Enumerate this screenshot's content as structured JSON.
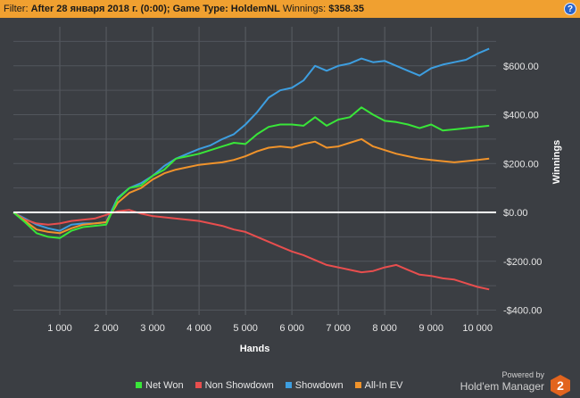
{
  "filter_bar": {
    "label": "Filter:",
    "value": "After 28 января 2018 г. (0:00); Game Type: HoldemNL",
    "winnings_label": "Winnings:",
    "winnings_value": "$358.35",
    "help_symbol": "?"
  },
  "branding": {
    "powered_by": "Powered by",
    "product": "Hold'em Manager",
    "badge": "2"
  },
  "chart_data": {
    "type": "line",
    "xlabel": "Hands",
    "ylabel": "Winnings",
    "xlim": [
      0,
      10400
    ],
    "ylim": [
      -420,
      760
    ],
    "x_ticks": [
      1000,
      2000,
      3000,
      4000,
      5000,
      6000,
      7000,
      8000,
      9000,
      10000
    ],
    "x_tick_labels": [
      "1 000",
      "2 000",
      "3 000",
      "4 000",
      "5 000",
      "6 000",
      "7 000",
      "8 000",
      "9 000",
      "10 000"
    ],
    "y_ticks": [
      -400,
      -200,
      0,
      200,
      400,
      600
    ],
    "y_tick_labels": [
      "-$400.00",
      "-$200.00",
      "$0.00",
      "$200.00",
      "$400.00",
      "$600.00"
    ],
    "grid": true,
    "zero_line": true,
    "legend_position": "bottom",
    "x": [
      0,
      250,
      500,
      750,
      1000,
      1250,
      1500,
      1750,
      2000,
      2250,
      2500,
      2750,
      3000,
      3250,
      3500,
      3750,
      4000,
      4250,
      4500,
      4750,
      5000,
      5250,
      5500,
      5750,
      6000,
      6250,
      6500,
      6750,
      7000,
      7250,
      7500,
      7750,
      8000,
      8250,
      8500,
      8750,
      9000,
      9250,
      9500,
      9750,
      10000,
      10250
    ],
    "series": [
      {
        "name": "Net Won",
        "color": "#39e639",
        "values": [
          0,
          -40,
          -85,
          -100,
          -105,
          -75,
          -60,
          -55,
          -50,
          55,
          100,
          110,
          150,
          175,
          220,
          230,
          240,
          255,
          270,
          285,
          280,
          320,
          350,
          360,
          360,
          355,
          390,
          355,
          380,
          390,
          430,
          400,
          375,
          370,
          360,
          345,
          360,
          335,
          340,
          345,
          350,
          355
        ]
      },
      {
        "name": "Non Showdown",
        "color": "#e84e4e",
        "values": [
          0,
          -30,
          -45,
          -50,
          -45,
          -35,
          -30,
          -25,
          -10,
          5,
          10,
          -5,
          -15,
          -20,
          -25,
          -30,
          -35,
          -45,
          -55,
          -70,
          -80,
          -100,
          -120,
          -140,
          -160,
          -175,
          -195,
          -215,
          -225,
          -235,
          -245,
          -240,
          -225,
          -215,
          -235,
          -255,
          -260,
          -270,
          -275,
          -290,
          -305,
          -315
        ]
      },
      {
        "name": "Showdown",
        "color": "#3d9ee0",
        "values": [
          0,
          -25,
          -50,
          -65,
          -75,
          -50,
          -45,
          -45,
          -40,
          60,
          100,
          120,
          150,
          190,
          220,
          240,
          260,
          275,
          300,
          320,
          360,
          410,
          470,
          500,
          510,
          540,
          600,
          580,
          600,
          610,
          630,
          615,
          620,
          600,
          580,
          560,
          590,
          605,
          615,
          625,
          650,
          670
        ]
      },
      {
        "name": "All-In EV",
        "color": "#f0932b",
        "values": [
          0,
          -35,
          -70,
          -80,
          -85,
          -65,
          -50,
          -45,
          -40,
          40,
          80,
          100,
          135,
          160,
          175,
          185,
          195,
          200,
          205,
          215,
          230,
          250,
          265,
          270,
          265,
          280,
          290,
          265,
          270,
          285,
          300,
          270,
          255,
          240,
          230,
          220,
          215,
          210,
          205,
          210,
          215,
          220
        ]
      }
    ]
  }
}
